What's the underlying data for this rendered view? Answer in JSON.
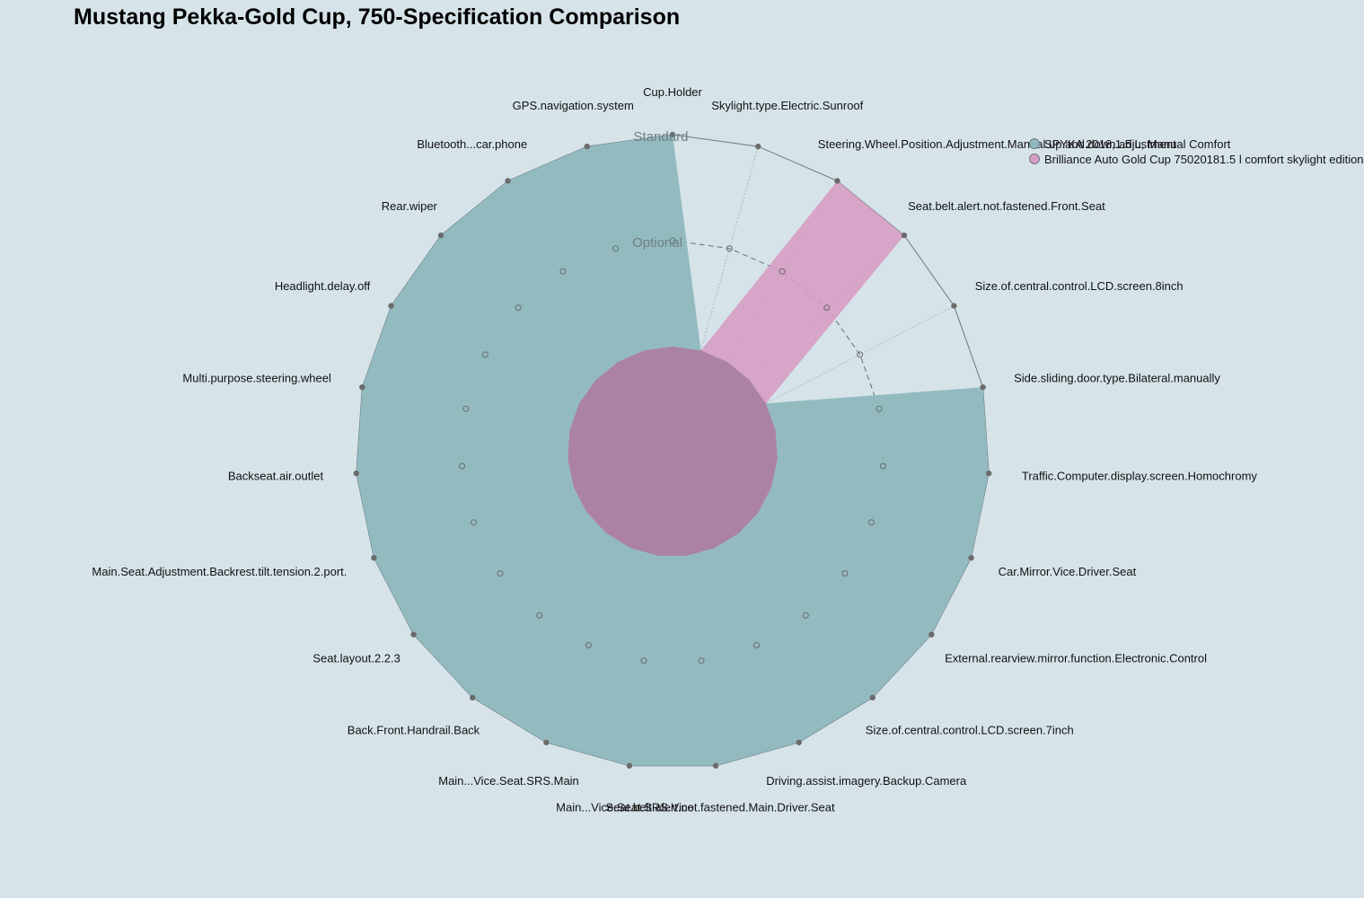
{
  "chart_data": {
    "type": "radar",
    "title": "Mustang Pekka-Gold Cup, 750-Specification Comparison",
    "levels": [
      "Standard",
      "Optional"
    ],
    "value_range": [
      0,
      1
    ],
    "grid": true,
    "legend_position": "top-right",
    "axes": [
      "Cup.Holder",
      "Skylight.type.Electric.Sunroof",
      "Steering.Wheel.Position.Adjustment.Manual.up.and.down.adjustment",
      "Seat.belt.alert.not.fastened.Front.Seat",
      "Size.of.central.control.LCD.screen.8inch",
      "Side.sliding.door.type.Bilateral.manually",
      "Traffic.Computer.display.screen.Homochromy",
      "Car.Mirror.Vice.Driver.Seat",
      "External.rearview.mirror.function.Electronic.Control",
      "Size.of.central.control.LCD.screen.7inch",
      "Driving.assist.imagery.Backup.Camera",
      "Seat.belt.alert.not.fastened.Main.Driver.Seat",
      "Main...Vice.Seat.SRS.Vice",
      "Main...Vice.Seat.SRS.Main",
      "Back.Front.Handrail.Back",
      "Seat.layout.2.2.3",
      "Main.Seat.Adjustment.Backrest.tilt.tension.2.port.",
      "Backseat.air.outlet",
      "Multi.purpose.steering.wheel",
      "Headlight.delay.off",
      "Rear.wiper",
      "Bluetooth...car.phone",
      "GPS.navigation.system"
    ],
    "series": [
      {
        "name": "SPYKA 2018,1.5 L, Manual Comfort",
        "color": "#8fb8bd",
        "values": [
          1,
          0,
          0,
          0,
          0,
          1,
          1,
          1,
          1,
          1,
          1,
          1,
          1,
          1,
          1,
          1,
          1,
          1,
          1,
          1,
          1,
          1,
          1
        ]
      },
      {
        "name": "Brilliance Auto Gold Cup 75020181.5 l comfort skylight edition",
        "color": "#d79cc2",
        "values": [
          0,
          0,
          1,
          1,
          0,
          0,
          0,
          0,
          0,
          0,
          0,
          0,
          0,
          0,
          0,
          0,
          0,
          0,
          0,
          0,
          0,
          0,
          0
        ]
      }
    ]
  }
}
